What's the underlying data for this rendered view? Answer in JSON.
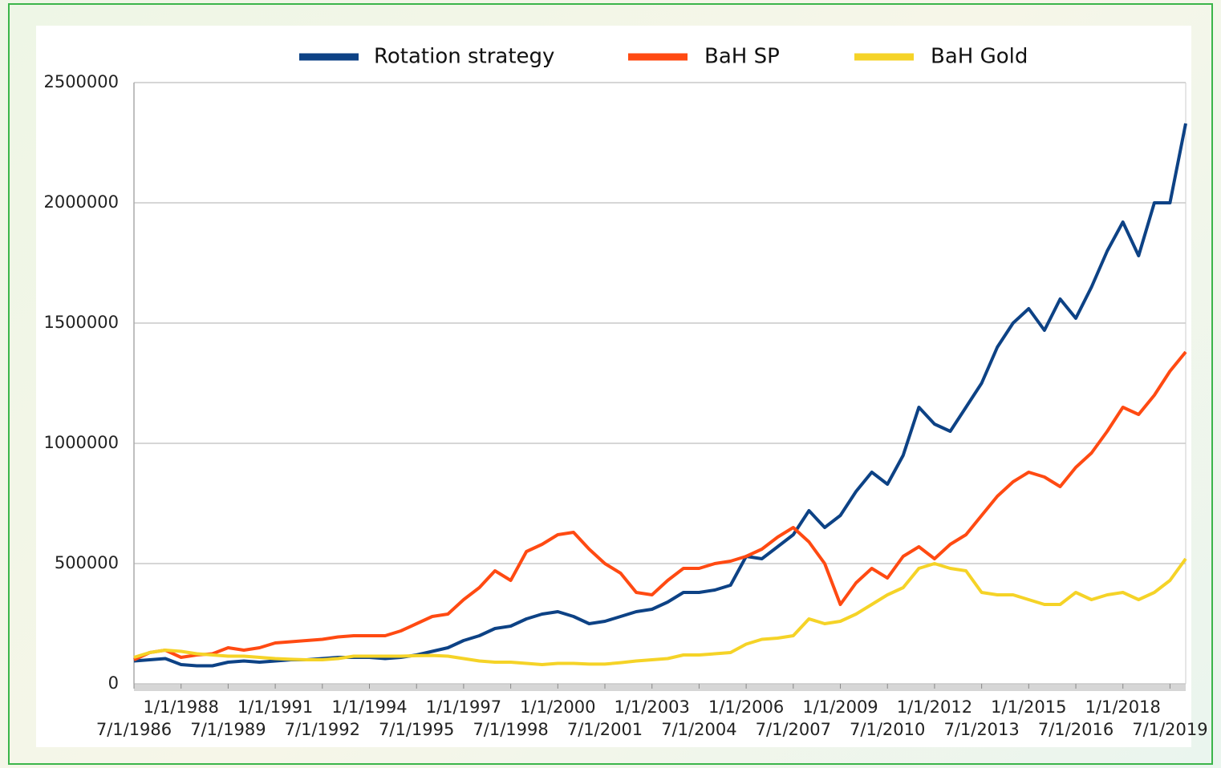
{
  "chart_data": {
    "type": "line",
    "categories": [
      "7/1/1986",
      null,
      null,
      "1/1/1988",
      null,
      null,
      "7/1/1989",
      null,
      null,
      "1/1/1991",
      null,
      null,
      "7/1/1992",
      null,
      null,
      "1/1/1994",
      null,
      null,
      "7/1/1995",
      null,
      null,
      "1/1/1997",
      null,
      null,
      "7/1/1998",
      null,
      null,
      "1/1/2000",
      null,
      null,
      "7/1/2001",
      null,
      null,
      "1/1/2003",
      null,
      null,
      "7/1/2004",
      null,
      null,
      "1/1/2006",
      null,
      null,
      "7/1/2007",
      null,
      null,
      "1/1/2009",
      null,
      null,
      "7/1/2010",
      null,
      null,
      "1/1/2012",
      null,
      null,
      "7/1/2013",
      null,
      null,
      "1/1/2015",
      null,
      null,
      "7/1/2016",
      null,
      null,
      "1/1/2018",
      null,
      null,
      "7/1/2019",
      null
    ],
    "series": [
      {
        "name": "Rotation strategy",
        "color": "#0d4285",
        "values": [
          95000,
          100000,
          105000,
          80000,
          75000,
          75000,
          90000,
          95000,
          90000,
          95000,
          100000,
          100000,
          105000,
          110000,
          110000,
          110000,
          105000,
          110000,
          120000,
          135000,
          150000,
          180000,
          200000,
          230000,
          240000,
          270000,
          290000,
          300000,
          280000,
          250000,
          260000,
          280000,
          300000,
          310000,
          340000,
          380000,
          380000,
          390000,
          410000,
          530000,
          520000,
          570000,
          620000,
          720000,
          650000,
          700000,
          800000,
          880000,
          830000,
          950000,
          1150000,
          1080000,
          1050000,
          1150000,
          1250000,
          1400000,
          1500000,
          1560000,
          1470000,
          1600000,
          1520000,
          1650000,
          1800000,
          1920000,
          1780000,
          2000000,
          2000000,
          2330000
        ]
      },
      {
        "name": "BaH SP",
        "color": "#ff4a12",
        "values": [
          100000,
          130000,
          140000,
          110000,
          120000,
          125000,
          150000,
          140000,
          150000,
          170000,
          175000,
          180000,
          185000,
          195000,
          200000,
          200000,
          200000,
          220000,
          250000,
          280000,
          290000,
          350000,
          400000,
          470000,
          430000,
          550000,
          580000,
          620000,
          630000,
          560000,
          500000,
          460000,
          380000,
          370000,
          430000,
          480000,
          480000,
          500000,
          510000,
          530000,
          560000,
          610000,
          650000,
          590000,
          500000,
          330000,
          420000,
          480000,
          440000,
          530000,
          570000,
          520000,
          580000,
          620000,
          700000,
          780000,
          840000,
          880000,
          860000,
          820000,
          900000,
          960000,
          1050000,
          1150000,
          1120000,
          1200000,
          1300000,
          1380000
        ]
      },
      {
        "name": "BaH Gold",
        "color": "#f5d327",
        "values": [
          110000,
          130000,
          140000,
          135000,
          125000,
          120000,
          115000,
          115000,
          110000,
          105000,
          102000,
          100000,
          100000,
          105000,
          115000,
          115000,
          115000,
          115000,
          117000,
          118000,
          115000,
          105000,
          95000,
          90000,
          90000,
          85000,
          80000,
          85000,
          85000,
          82000,
          82000,
          88000,
          95000,
          100000,
          105000,
          120000,
          120000,
          125000,
          130000,
          165000,
          185000,
          190000,
          200000,
          270000,
          250000,
          260000,
          290000,
          330000,
          370000,
          400000,
          480000,
          500000,
          480000,
          470000,
          380000,
          370000,
          370000,
          350000,
          330000,
          330000,
          380000,
          350000,
          370000,
          380000,
          350000,
          380000,
          430000,
          520000
        ]
      }
    ],
    "ylim": [
      0,
      2500000
    ],
    "yticks": [
      0,
      500000,
      1000000,
      1500000,
      2000000,
      2500000
    ],
    "grid": true,
    "legend": "top"
  }
}
